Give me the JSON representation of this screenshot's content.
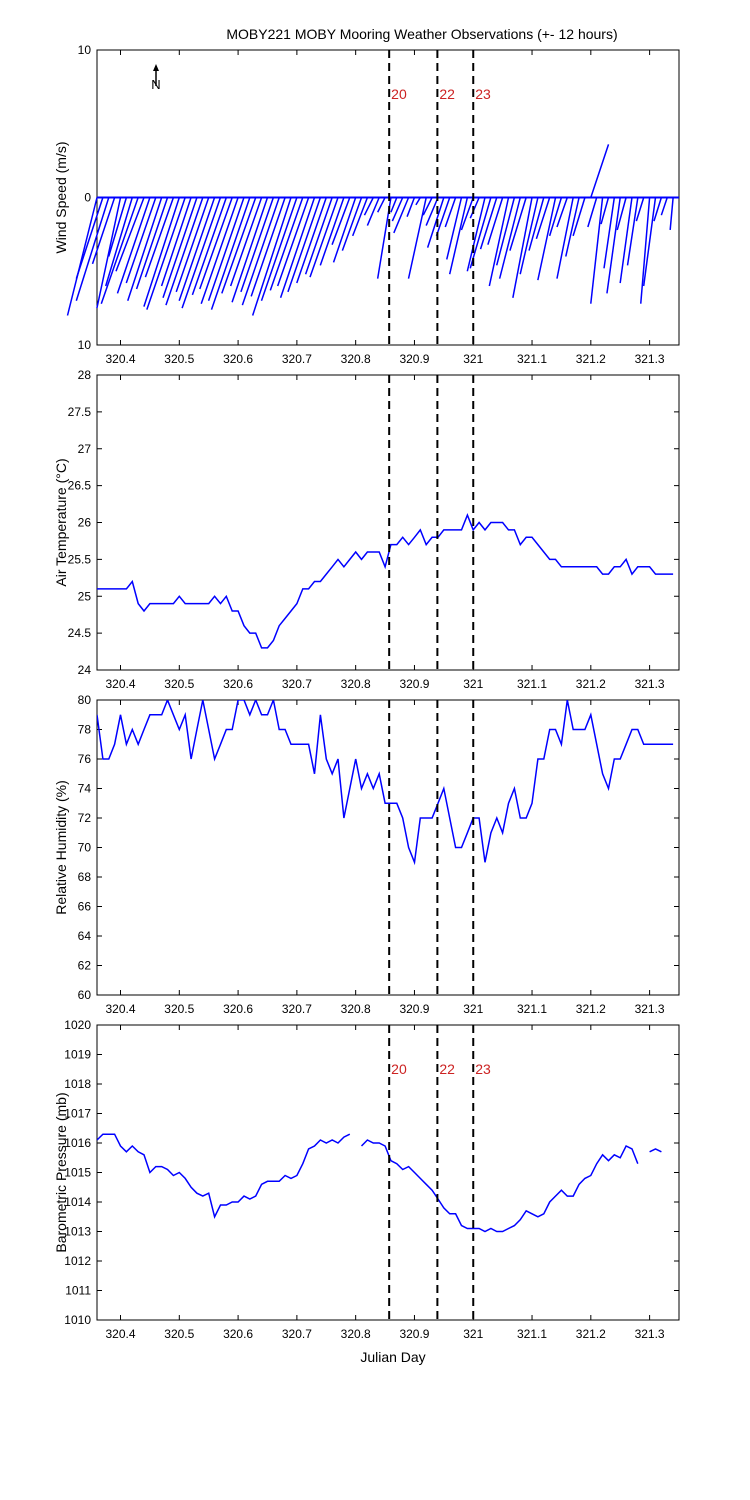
{
  "figure": {
    "title": "MOBY221 MOBY Mooring Weather Observations (+- 12 hours)",
    "xlabel": "Julian Day",
    "north_label": "N",
    "marker_color": "#cc2222",
    "series_color": "#0000ff",
    "x_ticks": [
      "320.4",
      "320.5",
      "320.6",
      "320.7",
      "320.8",
      "320.9",
      "321",
      "321.1",
      "321.2",
      "321.3"
    ],
    "x_tick_values": [
      320.4,
      320.5,
      320.6,
      320.7,
      320.8,
      320.9,
      321.0,
      321.1,
      321.2,
      321.3
    ],
    "markers": [
      {
        "x": 320.857,
        "label": "20"
      },
      {
        "x": 320.939,
        "label": "22"
      },
      {
        "x": 321.0,
        "label": "23"
      }
    ]
  },
  "chart_data": [
    {
      "type": "line",
      "subtype": "wind-stick",
      "ylabel": "Wind Speed (m/s)",
      "xlim": [
        320.36,
        321.35
      ],
      "ylim": [
        -10,
        10
      ],
      "y_ticks": [
        "10",
        "0",
        "10"
      ],
      "y_tick_values": [
        10,
        0,
        -10
      ],
      "show_markers": true,
      "x": [
        320.36,
        320.37,
        320.38,
        320.39,
        320.4,
        320.41,
        320.42,
        320.43,
        320.44,
        320.45,
        320.46,
        320.47,
        320.48,
        320.49,
        320.5,
        320.51,
        320.52,
        320.53,
        320.54,
        320.55,
        320.56,
        320.57,
        320.58,
        320.59,
        320.6,
        320.61,
        320.62,
        320.63,
        320.64,
        320.65,
        320.66,
        320.67,
        320.68,
        320.69,
        320.7,
        320.71,
        320.72,
        320.73,
        320.74,
        320.75,
        320.76,
        320.77,
        320.78,
        320.79,
        320.8,
        320.81,
        320.82,
        320.83,
        320.84,
        320.85,
        320.86,
        320.87,
        320.88,
        320.89,
        320.9,
        320.91,
        320.92,
        320.93,
        320.94,
        320.95,
        320.96,
        320.97,
        320.98,
        320.99,
        321.0,
        321.01,
        321.02,
        321.03,
        321.04,
        321.05,
        321.06,
        321.07,
        321.08,
        321.09,
        321.1,
        321.11,
        321.12,
        321.13,
        321.14,
        321.15,
        321.16,
        321.17,
        321.18,
        321.19,
        321.2,
        321.21,
        321.22,
        321.23,
        321.24,
        321.25,
        321.26,
        321.27,
        321.28,
        321.29,
        321.3,
        321.31,
        321.32,
        321.33,
        321.34
      ],
      "u": [
        -2.0,
        -1.8,
        -2.2,
        -1.5,
        -1.6,
        -1.2,
        -1.8,
        -2.5,
        -1.9,
        -2.2,
        -2.0,
        -2.3,
        -2.1,
        -1.9,
        -2.4,
        -2.6,
        -2.0,
        -2.3,
        -2.5,
        -2.2,
        -2.4,
        -2.6,
        -2.3,
        -2.2,
        -2.5,
        -2.4,
        -2.6,
        -2.3,
        -2.1,
        -2.4,
        -2.2,
        -2.5,
        -2.3,
        -2.6,
        -2.4,
        -2.2,
        -2.1,
        -2.3,
        -2.2,
        -2.0,
        -1.8,
        -1.9,
        -1.6,
        -1.2,
        -1.5,
        -1.3,
        -1.0,
        -0.6,
        -0.8,
        -0.5,
        -0.9,
        -0.4,
        -0.7,
        -1.0,
        -0.5,
        -0.3,
        -1.2,
        -0.6,
        -0.8,
        -1.1,
        -0.9,
        -0.7,
        -1.0,
        -1.2,
        -0.8,
        -0.6,
        -1.2,
        -1.4,
        -1.1,
        -1.0,
        -1.3,
        -1.2,
        -1.4,
        -1.1,
        -1.3,
        -1.2,
        -1.0,
        -0.9,
        -1.2,
        -0.8,
        -0.7,
        -1.1,
        -0.9,
        -0.8,
        1.2,
        -0.6,
        -0.8,
        -0.5,
        -0.7,
        -0.9,
        -0.6,
        -0.8,
        -0.7,
        -0.5,
        -0.6,
        -0.8,
        -0.5,
        -0.4,
        -0.2
      ],
      "v": [
        -8.0,
        -5.5,
        -7.0,
        -4.5,
        -7.5,
        -4.0,
        -6.0,
        -7.2,
        -5.0,
        -6.5,
        -5.8,
        -7.0,
        -6.2,
        -5.4,
        -7.4,
        -7.6,
        -6.0,
        -6.8,
        -7.3,
        -6.4,
        -7.0,
        -7.5,
        -6.6,
        -6.2,
        -7.2,
        -7.0,
        -7.6,
        -6.5,
        -6.0,
        -7.1,
        -6.4,
        -7.3,
        -6.7,
        -8.0,
        -7.0,
        -6.3,
        -6.0,
        -6.8,
        -6.4,
        -5.8,
        -5.2,
        -5.4,
        -4.6,
        -3.2,
        -4.4,
        -3.6,
        -2.6,
        -1.2,
        -1.9,
        -1.0,
        -5.5,
        -1.0,
        -1.6,
        -2.4,
        -1.3,
        -0.5,
        -5.5,
        -1.2,
        -1.9,
        -3.4,
        -2.6,
        -2.0,
        -4.2,
        -5.2,
        -2.2,
        -1.4,
        -5.0,
        -4.8,
        -3.5,
        -3.2,
        -6.0,
        -4.6,
        -5.5,
        -3.6,
        -6.8,
        -5.2,
        -3.6,
        -2.8,
        -5.6,
        -2.6,
        -2.0,
        -5.5,
        -4.0,
        -2.6,
        3.6,
        -2.0,
        -7.2,
        -1.8,
        -4.8,
        -6.5,
        -2.2,
        -5.8,
        -4.6,
        -1.6,
        -7.2,
        -6.0,
        -1.6,
        -1.2,
        -2.2
      ]
    },
    {
      "type": "line",
      "ylabel": "Air Temperature (°C)",
      "xlim": [
        320.36,
        321.35
      ],
      "ylim": [
        24,
        28
      ],
      "y_ticks": [
        "28",
        "27.5",
        "27",
        "26.5",
        "26",
        "25.5",
        "25",
        "24.5",
        "24"
      ],
      "y_tick_values": [
        28,
        27.5,
        27,
        26.5,
        26,
        25.5,
        25,
        24.5,
        24
      ],
      "show_markers": false,
      "x": [
        320.36,
        320.37,
        320.38,
        320.39,
        320.4,
        320.41,
        320.42,
        320.43,
        320.44,
        320.45,
        320.46,
        320.47,
        320.48,
        320.49,
        320.5,
        320.51,
        320.52,
        320.53,
        320.54,
        320.55,
        320.56,
        320.57,
        320.58,
        320.59,
        320.6,
        320.61,
        320.62,
        320.63,
        320.64,
        320.65,
        320.66,
        320.67,
        320.68,
        320.69,
        320.7,
        320.71,
        320.72,
        320.73,
        320.74,
        320.75,
        320.76,
        320.77,
        320.78,
        320.79,
        320.8,
        320.81,
        320.82,
        320.83,
        320.84,
        320.85,
        320.86,
        320.87,
        320.88,
        320.89,
        320.9,
        320.91,
        320.92,
        320.93,
        320.94,
        320.95,
        320.96,
        320.97,
        320.98,
        320.99,
        321.0,
        321.01,
        321.02,
        321.03,
        321.04,
        321.05,
        321.06,
        321.07,
        321.08,
        321.09,
        321.1,
        321.11,
        321.12,
        321.13,
        321.14,
        321.15,
        321.16,
        321.17,
        321.18,
        321.19,
        321.2,
        321.21,
        321.22,
        321.23,
        321.24,
        321.25,
        321.26,
        321.27,
        321.28,
        321.29,
        321.3,
        321.31,
        321.32,
        321.33,
        321.34
      ],
      "y": [
        25.1,
        25.1,
        25.1,
        25.1,
        25.1,
        25.1,
        25.2,
        24.9,
        24.8,
        24.9,
        24.9,
        24.9,
        24.9,
        24.9,
        25.0,
        24.9,
        24.9,
        24.9,
        24.9,
        24.9,
        25.0,
        24.9,
        25.0,
        24.8,
        24.8,
        24.6,
        24.5,
        24.5,
        24.3,
        24.3,
        24.4,
        24.6,
        24.7,
        24.8,
        24.9,
        25.1,
        25.1,
        25.2,
        25.2,
        25.3,
        25.4,
        25.5,
        25.4,
        25.5,
        25.6,
        25.5,
        25.6,
        25.6,
        25.6,
        25.4,
        25.7,
        25.7,
        25.8,
        25.7,
        25.8,
        25.9,
        25.7,
        25.8,
        25.8,
        25.9,
        25.9,
        25.9,
        25.9,
        26.1,
        25.9,
        26.0,
        25.9,
        26.0,
        26.0,
        26.0,
        25.9,
        25.9,
        25.7,
        25.8,
        25.8,
        25.7,
        25.6,
        25.5,
        25.5,
        25.4,
        25.4,
        25.4,
        25.4,
        25.4,
        25.4,
        25.4,
        25.3,
        25.3,
        25.4,
        25.4,
        25.5,
        25.3,
        25.4,
        25.4,
        25.4,
        25.3,
        25.3,
        25.3,
        25.3
      ]
    },
    {
      "type": "line",
      "ylabel": "Relative Humidity (%)",
      "xlim": [
        320.36,
        321.35
      ],
      "ylim": [
        60,
        80
      ],
      "y_ticks": [
        "80",
        "78",
        "76",
        "74",
        "72",
        "70",
        "68",
        "66",
        "64",
        "62",
        "60"
      ],
      "y_tick_values": [
        80,
        78,
        76,
        74,
        72,
        70,
        68,
        66,
        64,
        62,
        60
      ],
      "show_markers": false,
      "x": [
        320.36,
        320.37,
        320.38,
        320.39,
        320.4,
        320.41,
        320.42,
        320.43,
        320.44,
        320.45,
        320.46,
        320.47,
        320.48,
        320.49,
        320.5,
        320.51,
        320.52,
        320.53,
        320.54,
        320.55,
        320.56,
        320.57,
        320.58,
        320.59,
        320.6,
        320.61,
        320.62,
        320.63,
        320.64,
        320.65,
        320.66,
        320.67,
        320.68,
        320.69,
        320.7,
        320.71,
        320.72,
        320.73,
        320.74,
        320.75,
        320.76,
        320.77,
        320.78,
        320.79,
        320.8,
        320.81,
        320.82,
        320.83,
        320.84,
        320.85,
        320.86,
        320.87,
        320.88,
        320.89,
        320.9,
        320.91,
        320.92,
        320.93,
        320.94,
        320.95,
        320.96,
        320.97,
        320.98,
        320.99,
        321.0,
        321.01,
        321.02,
        321.03,
        321.04,
        321.05,
        321.06,
        321.07,
        321.08,
        321.09,
        321.1,
        321.11,
        321.12,
        321.13,
        321.14,
        321.15,
        321.16,
        321.17,
        321.18,
        321.19,
        321.2,
        321.21,
        321.22,
        321.23,
        321.24,
        321.25,
        321.26,
        321.27,
        321.28,
        321.29,
        321.3,
        321.31,
        321.32,
        321.33,
        321.34
      ],
      "y": [
        79,
        76,
        76,
        77,
        79,
        77,
        78,
        77,
        78,
        79,
        79,
        79,
        80,
        79,
        78,
        79,
        76,
        78,
        80,
        78,
        76,
        77,
        78,
        78,
        80,
        80,
        79,
        80,
        79,
        79,
        80,
        78,
        78,
        77,
        77,
        77,
        77,
        75,
        79,
        76,
        75,
        76,
        72,
        74,
        76,
        74,
        75,
        74,
        75,
        73,
        73,
        73,
        72,
        70,
        69,
        72,
        72,
        72,
        73,
        74,
        72,
        70,
        70,
        71,
        72,
        72,
        69,
        71,
        72,
        71,
        73,
        74,
        72,
        72,
        73,
        76,
        76,
        78,
        78,
        77,
        80,
        78,
        78,
        78,
        79,
        77,
        75,
        74,
        76,
        76,
        77,
        78,
        78,
        77,
        77,
        77,
        77,
        77,
        77
      ]
    },
    {
      "type": "line",
      "ylabel": "Barometric Pressure (mb)",
      "xlim": [
        320.36,
        321.35
      ],
      "ylim": [
        1010,
        1020
      ],
      "y_ticks": [
        "1020",
        "1019",
        "1018",
        "1017",
        "1016",
        "1015",
        "1014",
        "1013",
        "1012",
        "1011",
        "1010"
      ],
      "y_tick_values": [
        1020,
        1019,
        1018,
        1017,
        1016,
        1015,
        1014,
        1013,
        1012,
        1011,
        1010
      ],
      "show_markers": true,
      "x": [
        320.36,
        320.37,
        320.38,
        320.39,
        320.4,
        320.41,
        320.42,
        320.43,
        320.44,
        320.45,
        320.46,
        320.47,
        320.48,
        320.49,
        320.5,
        320.51,
        320.52,
        320.53,
        320.54,
        320.55,
        320.56,
        320.57,
        320.58,
        320.59,
        320.6,
        320.61,
        320.62,
        320.63,
        320.64,
        320.65,
        320.66,
        320.67,
        320.68,
        320.69,
        320.7,
        320.71,
        320.72,
        320.73,
        320.74,
        320.75,
        320.76,
        320.77,
        320.78,
        320.79,
        320.8,
        320.81,
        320.82,
        320.83,
        320.84,
        320.85,
        320.86,
        320.87,
        320.88,
        320.89,
        320.9,
        320.91,
        320.92,
        320.93,
        320.94,
        320.95,
        320.96,
        320.97,
        320.98,
        320.99,
        321.0,
        321.01,
        321.02,
        321.03,
        321.04,
        321.05,
        321.06,
        321.07,
        321.08,
        321.09,
        321.1,
        321.11,
        321.12,
        321.13,
        321.14,
        321.15,
        321.16,
        321.17,
        321.18,
        321.19,
        321.2,
        321.21,
        321.22,
        321.23,
        321.24,
        321.25,
        321.26,
        321.27,
        321.28,
        321.29,
        321.3,
        321.31,
        321.32,
        321.33,
        321.34
      ],
      "y": [
        1016.1,
        1016.3,
        1016.3,
        1016.3,
        1015.9,
        1015.7,
        1015.9,
        1015.7,
        1015.6,
        1015.0,
        1015.2,
        1015.2,
        1015.1,
        1014.9,
        1015.0,
        1014.8,
        1014.5,
        1014.3,
        1014.2,
        1014.3,
        1013.5,
        1013.9,
        1013.9,
        1014.0,
        1014.0,
        1014.2,
        1014.1,
        1014.2,
        1014.6,
        1014.7,
        1014.7,
        1014.7,
        1014.9,
        1014.8,
        1014.9,
        1015.3,
        1015.8,
        1015.9,
        1016.1,
        1016.0,
        1016.1,
        1016.0,
        1016.2,
        1016.3,
        null,
        1015.9,
        1016.1,
        1016.0,
        1016.0,
        1015.9,
        1015.4,
        1015.3,
        1015.1,
        1015.2,
        1015.0,
        1014.8,
        1014.6,
        1014.4,
        1014.1,
        1013.8,
        1013.6,
        1013.6,
        1013.2,
        1013.1,
        1013.1,
        1013.1,
        1013.0,
        1013.1,
        1013.0,
        1013.0,
        1013.1,
        1013.2,
        1013.4,
        1013.7,
        1013.6,
        1013.5,
        1013.6,
        1014.0,
        1014.2,
        1014.4,
        1014.2,
        1014.2,
        1014.6,
        1014.8,
        1014.9,
        1015.3,
        1015.6,
        1015.4,
        1015.6,
        1015.5,
        1015.9,
        1015.8,
        1015.3,
        null,
        1015.7,
        1015.8,
        1015.7,
        null,
        null
      ]
    }
  ]
}
